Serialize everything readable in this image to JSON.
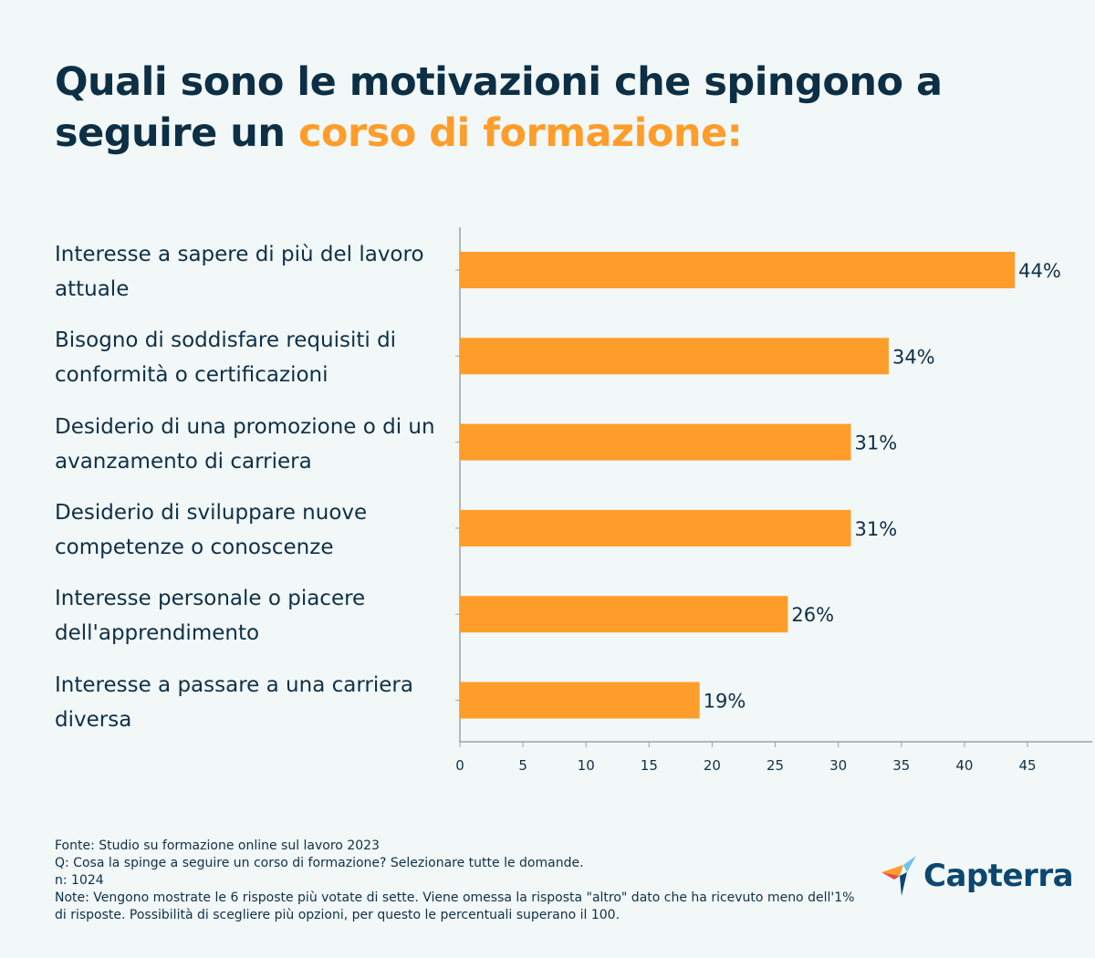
{
  "title": {
    "part1": "Quali sono le motivazioni che spingono a seguire un ",
    "highlight": "corso di formazione:"
  },
  "colors": {
    "bar": "#ff9d2a",
    "title": "#0d2f45",
    "highlight": "#ff9d2a",
    "background": "#f2f7f7"
  },
  "chart_data": {
    "type": "bar",
    "orientation": "horizontal",
    "categories": [
      "Interesse a sapere di più del lavoro attuale",
      "Bisogno di soddisfare requisiti di conformità o certificazioni",
      "Desiderio di una promozione o di un avanzamento di carriera",
      "Desiderio di sviluppare nuove competenze o conoscenze",
      "Interesse personale o piacere dell'apprendimento",
      "Interesse a passare a una carriera diversa"
    ],
    "values": [
      44,
      34,
      31,
      31,
      26,
      19
    ],
    "data_labels": [
      "44%",
      "34%",
      "31%",
      "31%",
      "26%",
      "19%"
    ],
    "xticks": [
      "0",
      "5",
      "10",
      "15",
      "20",
      "25",
      "30",
      "35",
      "40",
      "45"
    ],
    "xlim": [
      0,
      50
    ],
    "grid": false
  },
  "footer": {
    "source": "Fonte: Studio su formazione online sul lavoro 2023",
    "question": "Q: Cosa la spinge a seguire un corso di formazione? Selezionare tutte le domande.",
    "n": "n: 1024",
    "note": "Note: Vengono mostrate le 6 risposte più votate di sette. Viene omessa la risposta \"altro\" dato che ha ricevuto meno dell'1% di risposte. Possibilità di scegliere più opzioni, per questo le percentuali superano il 100."
  },
  "logo": {
    "text": "Capterra"
  }
}
